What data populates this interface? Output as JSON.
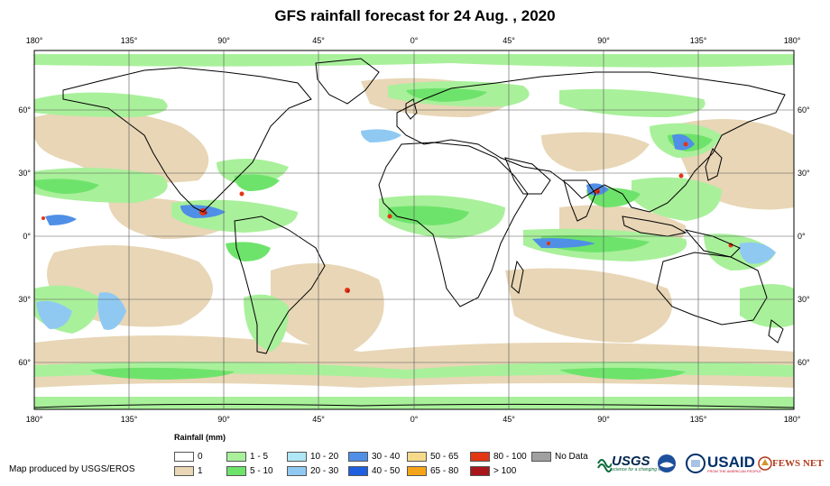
{
  "title": "GFS rainfall forecast for 24 Aug. , 2020",
  "axes": {
    "lon_labels": [
      "180°",
      "135°",
      "90°",
      "45°",
      "0°",
      "45°",
      "90°",
      "135°",
      "180°"
    ],
    "lat_labels": [
      "60°",
      "30°",
      "0°",
      "30°",
      "60°"
    ]
  },
  "legend": {
    "title": "Rainfall (mm)",
    "items": [
      {
        "label": "0",
        "color": "#ffffff"
      },
      {
        "label": "1",
        "color": "#e8d6b6"
      },
      {
        "label": "1 - 5",
        "color": "#a9f09b"
      },
      {
        "label": "5 - 10",
        "color": "#6ee36b"
      },
      {
        "label": "10 - 20",
        "color": "#b0e7f7"
      },
      {
        "label": "20 - 30",
        "color": "#8fc9f2"
      },
      {
        "label": "30 - 40",
        "color": "#4f8fe6"
      },
      {
        "label": "40 - 50",
        "color": "#1e5fe0"
      },
      {
        "label": "50 - 65",
        "color": "#f6da8c"
      },
      {
        "label": "65 - 80",
        "color": "#f5a418"
      },
      {
        "label": "80 - 100",
        "color": "#e33612"
      },
      {
        "label": "> 100",
        "color": "#a8151a"
      },
      {
        "label": "No Data",
        "color": "#a0a0a0"
      }
    ]
  },
  "producer": "Map produced by USGS/EROS",
  "logos": {
    "usgs": "USGS",
    "usgs_tagline": "science for a changing world",
    "usaid": "USAID",
    "usaid_tagline": "FROM THE AMERICAN PEOPLE",
    "fews": "FEWS NET"
  }
}
